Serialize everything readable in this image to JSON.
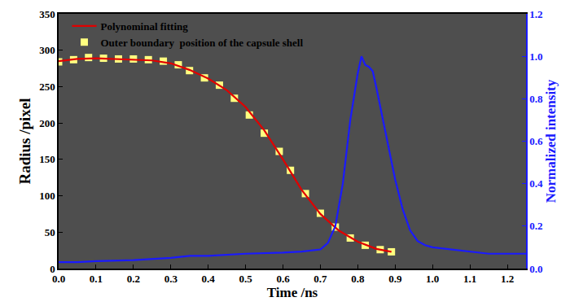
{
  "chart_data": {
    "type": "line",
    "x_label": "Time /ns",
    "y_label": "Radius /pixel",
    "y2_label": "Normalized intensity",
    "xlim": [
      0,
      1.25
    ],
    "xticks": [
      {
        "value": 0,
        "label": "0.0"
      },
      0.1,
      0.2,
      0.3,
      0.4,
      0.5,
      0.6,
      0.7,
      0.8,
      0.9,
      {
        "value": 1,
        "label": "1.0"
      },
      1.1,
      1.2
    ],
    "ylim": [
      0,
      350
    ],
    "yticks": [
      0,
      50,
      100,
      150,
      200,
      250,
      300,
      350
    ],
    "y2lim": [
      0,
      1.2
    ],
    "y2ticks": [
      {
        "value": 0,
        "label": "0.0"
      },
      0.2,
      0.4,
      0.6,
      0.8,
      {
        "value": 1,
        "label": "1.0"
      },
      1.2
    ],
    "grid": false,
    "legend": "top left",
    "series": [
      {
        "name": "Polynominal fitting",
        "type": "line",
        "line_style": "solid",
        "color": "#e00000",
        "x": [
          0,
          0.05,
          0.1,
          0.15,
          0.2,
          0.25,
          0.3,
          0.35,
          0.4,
          0.45,
          0.5,
          0.55,
          0.6,
          0.65,
          0.7,
          0.75,
          0.8,
          0.85,
          0.89
        ],
        "values": [
          285,
          288,
          289,
          288,
          287,
          286,
          282,
          273,
          261,
          245,
          222,
          190,
          150,
          108,
          75,
          52,
          37,
          27,
          23
        ]
      },
      {
        "name": "Outer boundary  position of the capsule shell",
        "type": "scatter",
        "marker": "square",
        "color": "#ffff80",
        "x": [
          0,
          0.04,
          0.08,
          0.12,
          0.16,
          0.2,
          0.24,
          0.28,
          0.32,
          0.35,
          0.39,
          0.43,
          0.47,
          0.51,
          0.55,
          0.59,
          0.62,
          0.66,
          0.7,
          0.74,
          0.78,
          0.82,
          0.86,
          0.89
        ],
        "values": [
          284,
          287,
          290,
          289,
          288,
          288,
          287,
          285,
          280,
          272,
          262,
          252,
          234,
          211,
          186,
          161,
          135,
          103,
          76,
          57,
          42,
          32,
          26,
          23
        ]
      },
      {
        "type": "line",
        "line_style": "solid",
        "color": "#1a1aff",
        "axis": "y2",
        "x": [
          0,
          0.05,
          0.1,
          0.2,
          0.3,
          0.35,
          0.4,
          0.5,
          0.6,
          0.65,
          0.7,
          0.72,
          0.74,
          0.76,
          0.78,
          0.8,
          0.81,
          0.82,
          0.83,
          0.84,
          0.85,
          0.87,
          0.9,
          0.92,
          0.94,
          0.96,
          0.98,
          1.0,
          1.05,
          1.1,
          1.15,
          1.2,
          1.25
        ],
        "values": [
          0.03,
          0.03,
          0.035,
          0.04,
          0.05,
          0.06,
          0.06,
          0.07,
          0.075,
          0.08,
          0.09,
          0.12,
          0.2,
          0.4,
          0.7,
          0.92,
          1.0,
          0.96,
          0.95,
          0.93,
          0.85,
          0.68,
          0.42,
          0.28,
          0.18,
          0.13,
          0.11,
          0.1,
          0.09,
          0.08,
          0.07,
          0.07,
          0.07
        ]
      }
    ]
  }
}
